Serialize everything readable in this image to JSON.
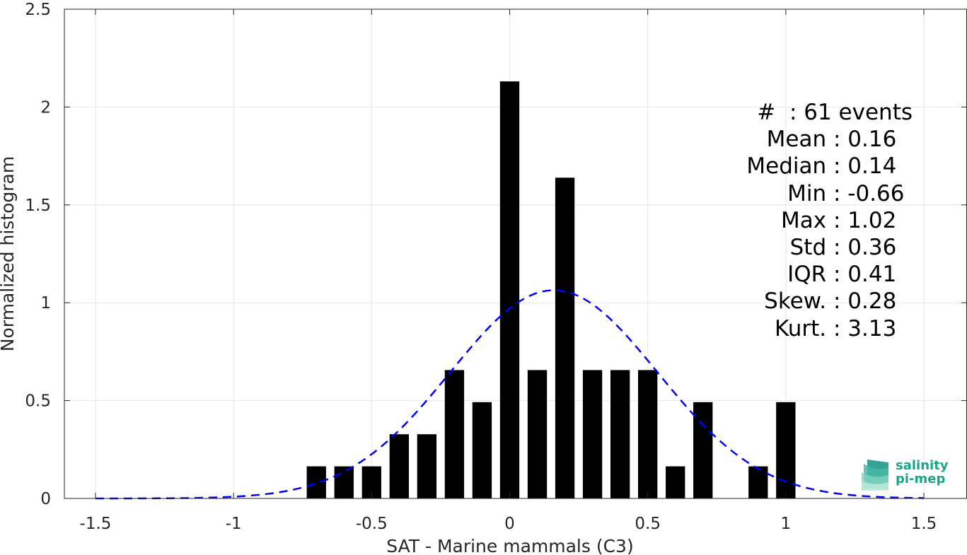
{
  "chart_data": {
    "type": "bar",
    "xlabel": "SAT - Marine mammals (C3)",
    "ylabel": "Normalized histogram",
    "xlim": [
      -1.5,
      1.5
    ],
    "ylim": [
      0,
      2.5
    ],
    "xticks": [
      "-1.5",
      "-1",
      "-0.5",
      "0",
      "0.5",
      "1",
      "1.5"
    ],
    "yticks": [
      "0",
      "0.5",
      "1",
      "1.5",
      "2",
      "2.5"
    ],
    "grid": true,
    "bin_width": 0.1,
    "bars": [
      {
        "x": -0.7,
        "y": 0.164
      },
      {
        "x": -0.6,
        "y": 0.164
      },
      {
        "x": -0.5,
        "y": 0.164
      },
      {
        "x": -0.4,
        "y": 0.328
      },
      {
        "x": -0.3,
        "y": 0.328
      },
      {
        "x": -0.2,
        "y": 0.656
      },
      {
        "x": -0.1,
        "y": 0.492
      },
      {
        "x": 0.0,
        "y": 2.131
      },
      {
        "x": 0.1,
        "y": 0.656
      },
      {
        "x": 0.2,
        "y": 1.639
      },
      {
        "x": 0.3,
        "y": 0.656
      },
      {
        "x": 0.4,
        "y": 0.656
      },
      {
        "x": 0.5,
        "y": 0.656
      },
      {
        "x": 0.6,
        "y": 0.164
      },
      {
        "x": 0.7,
        "y": 0.492
      },
      {
        "x": 0.9,
        "y": 0.164
      },
      {
        "x": 1.0,
        "y": 0.492
      }
    ],
    "bar_color": "#000000",
    "fit_curve": {
      "style": "dashed",
      "color": "#0000ff",
      "mean": 0.16,
      "std": 0.375
    },
    "annotations": [
      {
        "label": "#  ",
        "value": ": 61 events"
      },
      {
        "label": "Mean ",
        "value": ": 0.16"
      },
      {
        "label": "Median ",
        "value": ": 0.14"
      },
      {
        "label": "Min ",
        "value": ": -0.66"
      },
      {
        "label": "Max ",
        "value": ": 1.02"
      },
      {
        "label": "Std ",
        "value": ": 0.36"
      },
      {
        "label": "IQR ",
        "value": ": 0.41"
      },
      {
        "label": "Skew. ",
        "value": ": 0.28"
      },
      {
        "label": "Kurt. ",
        "value": ": 3.13"
      }
    ]
  },
  "logo": {
    "line1": "salinity",
    "line2": "pi-mep"
  }
}
